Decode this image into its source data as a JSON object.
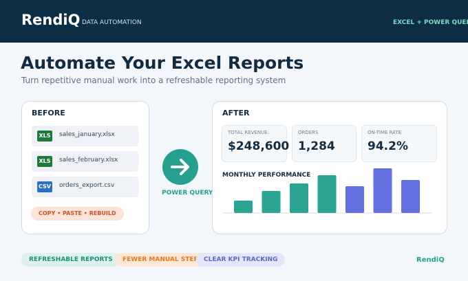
{
  "header": {
    "brand": "RendiQ",
    "tagline": "DATA AUTOMATION",
    "badge": "EXCEL + POWER QUERY"
  },
  "title": "Automate Your Excel Reports",
  "subtitle": "Turn repetitive manual work into a refreshable reporting system",
  "before": {
    "heading": "BEFORE",
    "files": [
      {
        "icon": "XLS",
        "name": "sales_january.xlsx"
      },
      {
        "icon": "XLS",
        "name": "sales_february.xlsx"
      },
      {
        "icon": "CSV",
        "name": "orders_export.csv"
      }
    ],
    "pill": "COPY • PASTE • REBUILD"
  },
  "connector": "POWER QUERY",
  "after": {
    "heading": "AFTER",
    "kpis": [
      {
        "label": "TOTAL REVENUE",
        "value": "$248,600"
      },
      {
        "label": "ORDERS",
        "value": "1,284"
      },
      {
        "label": "ON-TIME RATE",
        "value": "94.2%"
      }
    ],
    "chart_data": {
      "type": "bar",
      "title": "MONTHLY PERFORMANCE",
      "values": [
        18,
        32,
        43,
        55,
        39,
        65,
        48
      ],
      "colors": [
        "#2ba592",
        "#2ba592",
        "#2ba592",
        "#2ba592",
        "#6170dc",
        "#6170dc",
        "#6170dc"
      ],
      "ylim": [
        0,
        70
      ]
    }
  },
  "footer": {
    "pills": [
      "REFRESHABLE REPORTS",
      "FEWER MANUAL STEPS",
      "CLEAR KPI TRACKING"
    ],
    "brand": "RendiQ"
  }
}
